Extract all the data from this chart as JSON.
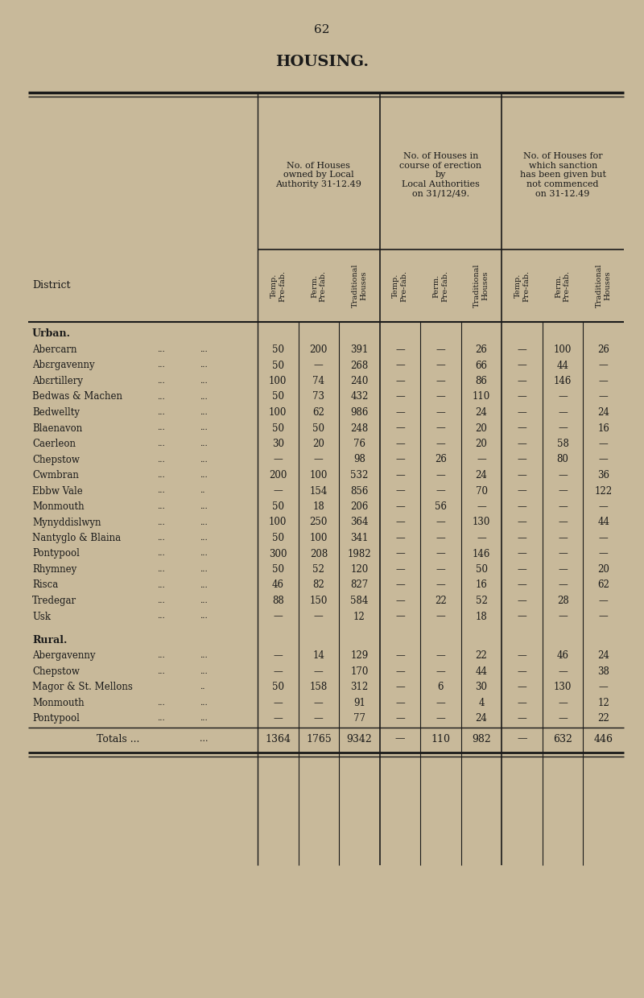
{
  "page_number": "62",
  "title": "HOUSING.",
  "background_color": "#c8b99a",
  "text_color": "#1a1a1a",
  "col_headers_group1": "No. of Houses\nowned by Local\nAuthority 31-12.49",
  "col_headers_group2": "No. of Houses in\ncourse of erection\nby\nLocal Authorities\non 31/12/49.",
  "col_headers_group3": "No. of Houses for\nwhich sanction\nhas been given but\nnot commenced\non 31-12.49",
  "sub_headers": [
    "Temp.\nPre-fab.",
    "Perm.\nPre-fab.",
    "Traditional\nHouses",
    "Temp.\nPre-fab.",
    "Perm.\nPre-fab.",
    "Traditional\nHouses",
    "Temp.\nPre-fab.",
    "Perm.\nPre-fab.",
    "Traditional\nHouses"
  ],
  "district_label": "District",
  "section_urban": "Urban.",
  "section_rural": "Rural.",
  "totals_label": "Totals ...",
  "totals_dots": "...",
  "rows_urban": [
    {
      "name": "Abercarn",
      "d1": "...",
      "d2": "...",
      "v": [
        "50",
        "200",
        "391",
        "—",
        "—",
        "26",
        "—",
        "100",
        "26"
      ]
    },
    {
      "name": "Abεrgavenny",
      "d1": "...",
      "d2": "...",
      "v": [
        "50",
        "—",
        "268",
        "—",
        "—",
        "66",
        "—",
        "44",
        "—"
      ]
    },
    {
      "name": "Abεrtillery",
      "d1": "...",
      "d2": "...",
      "v": [
        "100",
        "74",
        "240",
        "—",
        "—",
        "86",
        "—",
        "146",
        "—"
      ]
    },
    {
      "name": "Bedwas & Machen",
      "d1": "...",
      "d2": "...",
      "v": [
        "50",
        "73",
        "432",
        "—",
        "—",
        "110",
        "—",
        "—",
        "—"
      ]
    },
    {
      "name": "Bedwellty",
      "d1": "...",
      "d2": "...",
      "v": [
        "100",
        "62",
        "986",
        "—",
        "—",
        "24",
        "—",
        "—",
        "24"
      ]
    },
    {
      "name": "Blaenavon",
      "d1": "...",
      "d2": "...",
      "v": [
        "50",
        "50",
        "248",
        "—",
        "—",
        "20",
        "—",
        "—",
        "16"
      ]
    },
    {
      "name": "Caerleon",
      "d1": "...",
      "d2": "...",
      "v": [
        "30",
        "20",
        "76",
        "—",
        "—",
        "20",
        "—",
        "58",
        "—"
      ]
    },
    {
      "name": "Chepstow",
      "d1": "...",
      "d2": "...",
      "v": [
        "—",
        "—",
        "98",
        "—",
        "26",
        "—",
        "—",
        "80",
        "—"
      ]
    },
    {
      "name": "Cwmbran",
      "d1": "...",
      "d2": "...",
      "v": [
        "200",
        "100",
        "532",
        "—",
        "—",
        "24",
        "—",
        "—",
        "36"
      ]
    },
    {
      "name": "Ebbw Vale",
      "d1": "...",
      "d2": "..",
      "v": [
        "—",
        "154",
        "856",
        "—",
        "—",
        "70",
        "—",
        "—",
        "122"
      ]
    },
    {
      "name": "Monmouth",
      "d1": "...",
      "d2": "...",
      "v": [
        "50",
        "18",
        "206",
        "—",
        "56",
        "—",
        "—",
        "—",
        "—"
      ]
    },
    {
      "name": "Mynyddislwyn",
      "d1": "...",
      "d2": "...",
      "v": [
        "100",
        "250",
        "364",
        "—",
        "—",
        "130",
        "—",
        "—",
        "44"
      ]
    },
    {
      "name": "Nantyglo & Blaina",
      "d1": "...",
      "d2": "...",
      "v": [
        "50",
        "100",
        "341",
        "—",
        "—",
        "—",
        "—",
        "—",
        "—"
      ]
    },
    {
      "name": "Pontypool",
      "d1": "...",
      "d2": "...",
      "v": [
        "300",
        "208",
        "1982",
        "—",
        "—",
        "146",
        "—",
        "—",
        "—"
      ]
    },
    {
      "name": "Rhymney",
      "d1": "...",
      "d2": "...",
      "v": [
        "50",
        "52",
        "120",
        "—",
        "—",
        "50",
        "—",
        "—",
        "20"
      ]
    },
    {
      "name": "Risca",
      "d1": "...",
      "d2": "...",
      "v": [
        "46",
        "82",
        "827",
        "—",
        "—",
        "16",
        "—",
        "—",
        "62"
      ]
    },
    {
      "name": "Tredegar",
      "d1": "...",
      "d2": "...",
      "v": [
        "88",
        "150",
        "584",
        "—",
        "22",
        "52",
        "—",
        "28",
        "—"
      ]
    },
    {
      "name": "Usk",
      "d1": "...",
      "d2": "...",
      "v": [
        "—",
        "—",
        "12",
        "—",
        "—",
        "18",
        "—",
        "—",
        "—"
      ]
    }
  ],
  "rows_rural": [
    {
      "name": "Abergavenny",
      "d1": "...",
      "d2": "...",
      "v": [
        "—",
        "14",
        "129",
        "—",
        "—",
        "22",
        "—",
        "46",
        "24"
      ]
    },
    {
      "name": "Chepstow",
      "d1": "...",
      "d2": "...",
      "v": [
        "—",
        "—",
        "170",
        "—",
        "—",
        "44",
        "—",
        "—",
        "38"
      ]
    },
    {
      "name": "Magor & St. Mellons",
      "d1": "",
      "d2": "..",
      "v": [
        "50",
        "158",
        "312",
        "—",
        "6",
        "30",
        "—",
        "130",
        "—"
      ]
    },
    {
      "name": "Monmouth",
      "d1": "...",
      "d2": "...",
      "v": [
        "—",
        "—",
        "91",
        "—",
        "—",
        "4",
        "—",
        "—",
        "12"
      ]
    },
    {
      "name": "Pontypool",
      "d1": "...",
      "d2": "...",
      "v": [
        "—",
        "—",
        "77",
        "—",
        "—",
        "24",
        "—",
        "—",
        "22"
      ]
    }
  ],
  "totals_row": [
    "1364",
    "1765",
    "9342",
    "—",
    "110",
    "982",
    "—",
    "632",
    "446"
  ]
}
